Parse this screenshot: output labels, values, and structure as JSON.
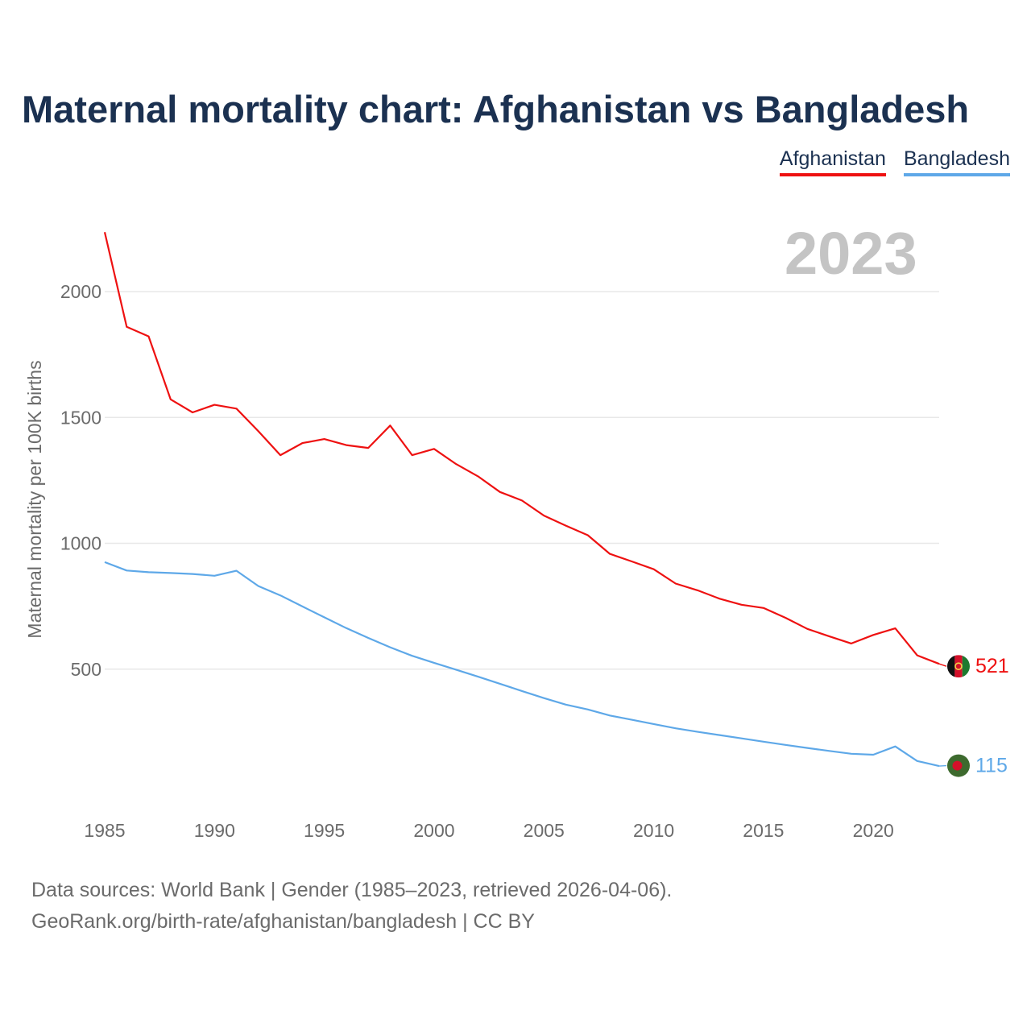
{
  "page": {
    "title": "Maternal mortality chart: Afghanistan vs Bangladesh",
    "watermark_year": "2023",
    "source_line1": "Data sources: World Bank | Gender (1985–2023, retrieved 2026-04-06).",
    "source_line2": "GeoRank.org/birth-rate/afghanistan/bangladesh | CC BY"
  },
  "legend": {
    "items": [
      {
        "label": "Afghanistan",
        "color": "#ee1111"
      },
      {
        "label": "Bangladesh",
        "color": "#5ea8e8"
      }
    ]
  },
  "chart_data": {
    "type": "line",
    "title": "Maternal mortality chart: Afghanistan vs Bangladesh",
    "xlabel": "",
    "ylabel": "Maternal mortality per 100K births",
    "xlim": [
      1985,
      2023
    ],
    "ylim": [
      0,
      2300
    ],
    "y_ticks": [
      500,
      1000,
      1500,
      2000
    ],
    "x_ticks": [
      1985,
      1990,
      1995,
      2000,
      2005,
      2010,
      2015,
      2020
    ],
    "grid": true,
    "legend_position": "top-right",
    "x": [
      1985,
      1986,
      1987,
      1988,
      1989,
      1990,
      1991,
      1992,
      1993,
      1994,
      1995,
      1996,
      1997,
      1998,
      1999,
      2000,
      2001,
      2002,
      2003,
      2004,
      2005,
      2006,
      2007,
      2008,
      2009,
      2010,
      2011,
      2012,
      2013,
      2014,
      2015,
      2016,
      2017,
      2018,
      2019,
      2020,
      2021,
      2022,
      2023
    ],
    "series": [
      {
        "name": "Afghanistan",
        "color": "#ee1111",
        "end_label": "521",
        "values": [
          2236,
          1860,
          1822,
          1572,
          1520,
          1550,
          1535,
          1445,
          1350,
          1398,
          1414,
          1390,
          1379,
          1468,
          1350,
          1375,
          1315,
          1266,
          1204,
          1170,
          1110,
          1070,
          1032,
          958,
          928,
          897,
          840,
          813,
          780,
          756,
          743,
          704,
          660,
          630,
          602,
          636,
          662,
          555,
          521
        ]
      },
      {
        "name": "Bangladesh",
        "color": "#5ea8e8",
        "end_label": "115",
        "values": [
          925,
          892,
          885,
          882,
          878,
          871,
          891,
          830,
          793,
          749,
          706,
          663,
          624,
          587,
          553,
          525,
          498,
          470,
          442,
          413,
          385,
          359,
          340,
          316,
          299,
          282,
          265,
          251,
          238,
          225,
          212,
          199,
          187,
          175,
          164,
          160,
          193,
          135,
          115
        ]
      }
    ]
  }
}
